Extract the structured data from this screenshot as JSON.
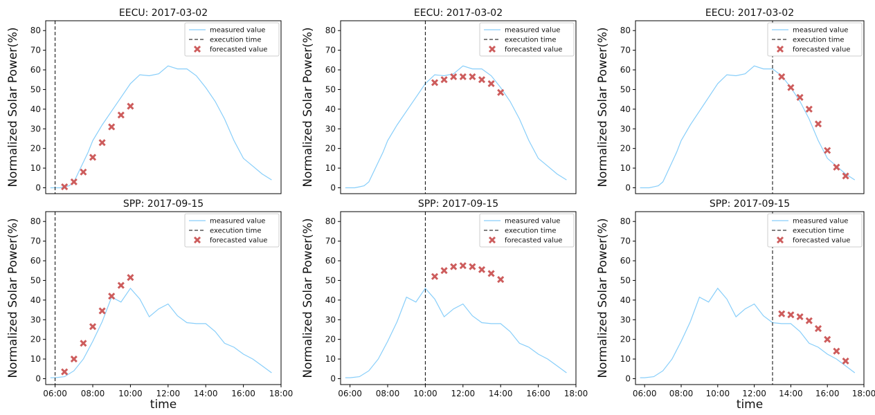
{
  "chart_data": [
    {
      "type": "line",
      "title": "EECU: 2017-03-02",
      "ylabel": "Normalized Solar Power(%)",
      "xlabel": "",
      "xlim": [
        "05:30",
        "18:00"
      ],
      "ylim": [
        -3,
        85
      ],
      "y_ticks": [
        0,
        10,
        20,
        30,
        40,
        50,
        60,
        70,
        80
      ],
      "x_ticks": [],
      "execution_time": "06:00",
      "legend": {
        "position": "top-right",
        "entries": [
          "measured value",
          "execution time",
          "forecasted value"
        ]
      },
      "series": [
        {
          "name": "measured value",
          "kind": "line",
          "x": [
            "05:45",
            "06:00",
            "06:15",
            "06:30",
            "06:45",
            "07:00",
            "07:15",
            "07:30",
            "07:45",
            "08:00",
            "08:30",
            "09:00",
            "09:30",
            "10:00",
            "10:30",
            "11:00",
            "11:30",
            "12:00",
            "12:30",
            "13:00",
            "13:30",
            "14:00",
            "14:30",
            "15:00",
            "15:30",
            "16:00",
            "16:30",
            "17:00",
            "17:30"
          ],
          "y": [
            0,
            0,
            0,
            0.5,
            1,
            3,
            8,
            13,
            18,
            24,
            32,
            39,
            46,
            53,
            57.5,
            57,
            58,
            62,
            60.5,
            60.5,
            57,
            51,
            44,
            35,
            24,
            15,
            11,
            7,
            4
          ]
        },
        {
          "name": "forecasted value",
          "kind": "marker",
          "x": [
            "06:30",
            "07:00",
            "07:30",
            "08:00",
            "08:30",
            "09:00",
            "09:30",
            "10:00"
          ],
          "y": [
            0.5,
            3,
            8,
            15.5,
            23,
            31,
            37,
            41.5
          ]
        }
      ]
    },
    {
      "type": "line",
      "title": "EECU: 2017-03-02",
      "ylabel": "Normalized Solar Power(%)",
      "xlabel": "",
      "xlim": [
        "05:30",
        "18:00"
      ],
      "ylim": [
        -3,
        85
      ],
      "y_ticks": [
        0,
        10,
        20,
        30,
        40,
        50,
        60,
        70,
        80
      ],
      "x_ticks": [],
      "execution_time": "10:00",
      "legend": {
        "position": "top-right",
        "entries": [
          "measured value",
          "execution time",
          "forecasted value"
        ]
      },
      "series": [
        {
          "name": "measured value",
          "kind": "line",
          "x": [
            "05:45",
            "06:00",
            "06:15",
            "06:30",
            "06:45",
            "07:00",
            "07:15",
            "07:30",
            "07:45",
            "08:00",
            "08:30",
            "09:00",
            "09:30",
            "10:00",
            "10:30",
            "11:00",
            "11:30",
            "12:00",
            "12:30",
            "13:00",
            "13:30",
            "14:00",
            "14:30",
            "15:00",
            "15:30",
            "16:00",
            "16:30",
            "17:00",
            "17:30"
          ],
          "y": [
            0,
            0,
            0,
            0.5,
            1,
            3,
            8,
            13,
            18,
            24,
            32,
            39,
            46,
            53,
            57.5,
            57,
            58,
            62,
            60.5,
            60.5,
            57,
            51,
            44,
            35,
            24,
            15,
            11,
            7,
            4
          ]
        },
        {
          "name": "forecasted value",
          "kind": "marker",
          "x": [
            "10:30",
            "11:00",
            "11:30",
            "12:00",
            "12:30",
            "13:00",
            "13:30",
            "14:00"
          ],
          "y": [
            53.5,
            55,
            56.5,
            56.5,
            56.5,
            55,
            53,
            48.5
          ]
        }
      ]
    },
    {
      "type": "line",
      "title": "EECU: 2017-03-02",
      "ylabel": "Normalized Solar Power(%)",
      "xlabel": "",
      "xlim": [
        "05:30",
        "18:00"
      ],
      "ylim": [
        -3,
        85
      ],
      "y_ticks": [
        0,
        10,
        20,
        30,
        40,
        50,
        60,
        70,
        80
      ],
      "x_ticks": [],
      "execution_time": "13:00",
      "legend": {
        "position": "top-right",
        "entries": [
          "measured value",
          "execution time",
          "forecasted value"
        ]
      },
      "series": [
        {
          "name": "measured value",
          "kind": "line",
          "x": [
            "05:45",
            "06:00",
            "06:15",
            "06:30",
            "06:45",
            "07:00",
            "07:15",
            "07:30",
            "07:45",
            "08:00",
            "08:30",
            "09:00",
            "09:30",
            "10:00",
            "10:30",
            "11:00",
            "11:30",
            "12:00",
            "12:30",
            "13:00",
            "13:30",
            "14:00",
            "14:30",
            "15:00",
            "15:30",
            "16:00",
            "16:30",
            "17:00",
            "17:30"
          ],
          "y": [
            0,
            0,
            0,
            0.5,
            1,
            3,
            8,
            13,
            18,
            24,
            32,
            39,
            46,
            53,
            57.5,
            57,
            58,
            62,
            60.5,
            60.5,
            57,
            51,
            44,
            35,
            24,
            15,
            11,
            7,
            4
          ]
        },
        {
          "name": "forecasted value",
          "kind": "marker",
          "x": [
            "13:30",
            "14:00",
            "14:30",
            "15:00",
            "15:30",
            "16:00",
            "16:30",
            "17:00"
          ],
          "y": [
            56.5,
            51,
            46,
            40,
            32.5,
            19,
            10.5,
            6
          ]
        }
      ]
    },
    {
      "type": "line",
      "title": "SPP: 2017-09-15",
      "ylabel": "Normalized Solar Power(%)",
      "xlabel": "time",
      "xlim": [
        "05:30",
        "18:00"
      ],
      "ylim": [
        -3,
        85
      ],
      "y_ticks": [
        0,
        10,
        20,
        30,
        40,
        50,
        60,
        70,
        80
      ],
      "x_ticks": [
        "06:00",
        "08:00",
        "10:00",
        "12:00",
        "14:00",
        "16:00",
        "18:00"
      ],
      "execution_time": "06:00",
      "legend": {
        "position": "top-right",
        "entries": [
          "measured value",
          "execution time",
          "forecasted value"
        ]
      },
      "series": [
        {
          "name": "measured value",
          "kind": "line",
          "x": [
            "05:45",
            "06:00",
            "06:30",
            "07:00",
            "07:30",
            "08:00",
            "08:30",
            "09:00",
            "09:30",
            "10:00",
            "10:30",
            "11:00",
            "11:30",
            "12:00",
            "12:30",
            "13:00",
            "13:30",
            "14:00",
            "14:30",
            "15:00",
            "15:30",
            "16:00",
            "16:30",
            "17:00",
            "17:30"
          ],
          "y": [
            0.5,
            0.5,
            1,
            4,
            10,
            19,
            29,
            41.5,
            39,
            46,
            40.5,
            31.5,
            35.5,
            38,
            32,
            28.5,
            28,
            28,
            24,
            18,
            16,
            12.5,
            10,
            6.5,
            3
          ]
        },
        {
          "name": "forecasted value",
          "kind": "marker",
          "x": [
            "06:30",
            "07:00",
            "07:30",
            "08:00",
            "08:30",
            "09:00",
            "09:30",
            "10:00"
          ],
          "y": [
            3.5,
            10,
            18,
            26.5,
            34.5,
            42,
            47.5,
            51.5
          ]
        }
      ]
    },
    {
      "type": "line",
      "title": "SPP: 2017-09-15",
      "ylabel": "Normalized Solar Power(%)",
      "xlabel": "",
      "xlim": [
        "05:30",
        "18:00"
      ],
      "ylim": [
        -3,
        85
      ],
      "y_ticks": [
        0,
        10,
        20,
        30,
        40,
        50,
        60,
        70,
        80
      ],
      "x_ticks": [
        "06:00",
        "08:00",
        "10:00",
        "12:00",
        "14:00",
        "16:00",
        "18:00"
      ],
      "execution_time": "10:00",
      "legend": {
        "position": "top-right",
        "entries": [
          "measured value",
          "execution time",
          "forecasted value"
        ]
      },
      "series": [
        {
          "name": "measured value",
          "kind": "line",
          "x": [
            "05:45",
            "06:00",
            "06:30",
            "07:00",
            "07:30",
            "08:00",
            "08:30",
            "09:00",
            "09:30",
            "10:00",
            "10:30",
            "11:00",
            "11:30",
            "12:00",
            "12:30",
            "13:00",
            "13:30",
            "14:00",
            "14:30",
            "15:00",
            "15:30",
            "16:00",
            "16:30",
            "17:00",
            "17:30"
          ],
          "y": [
            0.5,
            0.5,
            1,
            4,
            10,
            19,
            29,
            41.5,
            39,
            46,
            40.5,
            31.5,
            35.5,
            38,
            32,
            28.5,
            28,
            28,
            24,
            18,
            16,
            12.5,
            10,
            6.5,
            3
          ]
        },
        {
          "name": "forecasted value",
          "kind": "marker",
          "x": [
            "10:30",
            "11:00",
            "11:30",
            "12:00",
            "12:30",
            "13:00",
            "13:30",
            "14:00"
          ],
          "y": [
            52,
            55,
            57,
            57.5,
            57,
            55.5,
            53.5,
            50.5
          ]
        }
      ]
    },
    {
      "type": "line",
      "title": "SPP: 2017-09-15",
      "ylabel": "Normalized Solar Power(%)",
      "xlabel": "time",
      "xlim": [
        "05:30",
        "18:00"
      ],
      "ylim": [
        -3,
        85
      ],
      "y_ticks": [
        0,
        10,
        20,
        30,
        40,
        50,
        60,
        70,
        80
      ],
      "x_ticks": [
        "06:00",
        "08:00",
        "10:00",
        "12:00",
        "14:00",
        "16:00",
        "18:00"
      ],
      "execution_time": "13:00",
      "legend": {
        "position": "top-right",
        "entries": [
          "measured value",
          "execution time",
          "forecasted value"
        ]
      },
      "series": [
        {
          "name": "measured value",
          "kind": "line",
          "x": [
            "05:45",
            "06:00",
            "06:30",
            "07:00",
            "07:30",
            "08:00",
            "08:30",
            "09:00",
            "09:30",
            "10:00",
            "10:30",
            "11:00",
            "11:30",
            "12:00",
            "12:30",
            "13:00",
            "13:30",
            "14:00",
            "14:30",
            "15:00",
            "15:30",
            "16:00",
            "16:30",
            "17:00",
            "17:30"
          ],
          "y": [
            0.5,
            0.5,
            1,
            4,
            10,
            19,
            29,
            41.5,
            39,
            46,
            40.5,
            31.5,
            35.5,
            38,
            32,
            28.5,
            28,
            28,
            24,
            18,
            16,
            12.5,
            10,
            6.5,
            3
          ]
        },
        {
          "name": "forecasted value",
          "kind": "marker",
          "x": [
            "13:30",
            "14:00",
            "14:30",
            "15:00",
            "15:30",
            "16:00",
            "16:30",
            "17:00"
          ],
          "y": [
            33,
            32.5,
            31.5,
            29.5,
            25.5,
            20,
            14,
            9
          ]
        }
      ]
    }
  ],
  "colors": {
    "measured": "#87cefa",
    "forecast": "#cd5c5c",
    "execution": "#000000"
  }
}
